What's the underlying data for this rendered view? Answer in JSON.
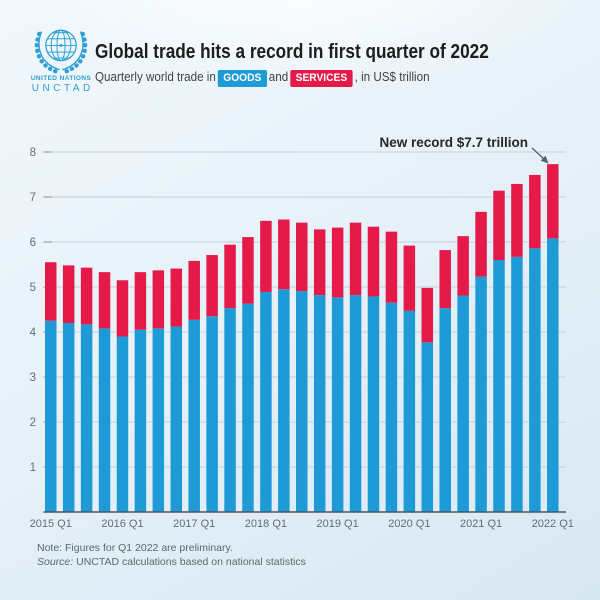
{
  "header": {
    "logo": {
      "org": "UNITED NATIONS",
      "agency": "UNCTAD",
      "emblem": "un-emblem-icon",
      "color": "#2f9fd6"
    },
    "title": "Global trade hits a record in first quarter of 2022",
    "subtitle": {
      "prefix": "Quarterly world trade in",
      "badge_goods": "GOODS",
      "middle": "and",
      "badge_services": "SERVICES",
      "suffix": ", in US$ trillion"
    }
  },
  "chart_data": {
    "type": "bar",
    "stacked": true,
    "title": "Quarterly world trade in goods and services, in US$ trillion",
    "value_unit": "US$ trillion",
    "categories": [
      "2015 Q1",
      "2015 Q2",
      "2015 Q3",
      "2015 Q4",
      "2016 Q1",
      "2016 Q2",
      "2016 Q3",
      "2016 Q4",
      "2017 Q1",
      "2017 Q2",
      "2017 Q3",
      "2017 Q4",
      "2018 Q1",
      "2018 Q2",
      "2018 Q3",
      "2018 Q4",
      "2019 Q1",
      "2019 Q2",
      "2019 Q3",
      "2019 Q4",
      "2020 Q1",
      "2020 Q2",
      "2020 Q3",
      "2020 Q4",
      "2021 Q1",
      "2021 Q2",
      "2021 Q3",
      "2021 Q4",
      "2022 Q1"
    ],
    "series": [
      {
        "name": "GOODS",
        "color": "#1e9bd6",
        "values": [
          4.25,
          4.2,
          4.17,
          4.08,
          3.9,
          4.05,
          4.08,
          4.12,
          4.27,
          4.35,
          4.53,
          4.63,
          4.89,
          4.95,
          4.91,
          4.82,
          4.77,
          4.82,
          4.79,
          4.65,
          4.47,
          3.77,
          4.53,
          4.81,
          5.23,
          5.6,
          5.67,
          5.86,
          6.08
        ]
      },
      {
        "name": "SERVICES",
        "color": "#e61a49",
        "values": [
          1.3,
          1.28,
          1.26,
          1.25,
          1.25,
          1.28,
          1.29,
          1.29,
          1.31,
          1.36,
          1.41,
          1.48,
          1.58,
          1.55,
          1.52,
          1.46,
          1.55,
          1.61,
          1.55,
          1.58,
          1.45,
          1.21,
          1.29,
          1.32,
          1.44,
          1.54,
          1.62,
          1.63,
          1.65
        ]
      }
    ],
    "ylim": [
      0,
      8
    ],
    "yticks": [
      1,
      2,
      3,
      4,
      5,
      6,
      7,
      8
    ],
    "x_axis": {
      "labeled_category_indices": [
        0,
        4,
        8,
        12,
        16,
        20,
        24,
        28
      ],
      "labels": [
        "2015 Q1",
        "2016 Q1",
        "2017 Q1",
        "2018 Q1",
        "2019 Q1",
        "2020 Q1",
        "2021 Q1",
        "2022 Q1"
      ]
    },
    "grid": true,
    "legend_position": "in-subtitle-badges",
    "annotation": {
      "text": "New record $7.7 trillion",
      "target_category": "2022 Q1",
      "target_value": 7.7
    },
    "style": {
      "grid_color": "#c5d1d9",
      "tick_color": "#8d99a1",
      "axis_line_color": "#4d565c",
      "axis_label_color": "#626e76",
      "annotation_color": "#24282b",
      "arrow_color": "#55606a"
    }
  },
  "notes": {
    "note": "Note: Figures for Q1 2022 are preliminary.",
    "source_label": "Source:",
    "source_text": " UNCTAD calculations based on national statistics"
  }
}
